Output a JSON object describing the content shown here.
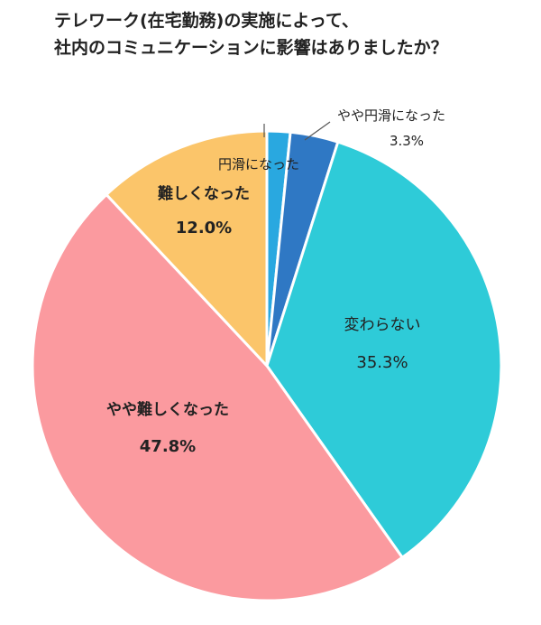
{
  "chart_data": {
    "type": "pie",
    "title_lines": [
      "テレワーク(在宅勤務)の実施によって、",
      "社内のコミュニケーションに影響はありましたか？"
    ],
    "start": "12 o'clock, clockwise",
    "slices": [
      {
        "label": "円滑になった",
        "value": 1.6,
        "value_label": "",
        "color": "#29a8e0"
      },
      {
        "label": "やや円滑になった",
        "value": 3.3,
        "value_label": "3.3%",
        "color": "#2f78c4"
      },
      {
        "label": "変わらない",
        "value": 35.3,
        "value_label": "35.3%",
        "color": "#2ecbd8"
      },
      {
        "label": "やや難しくなった",
        "value": 47.8,
        "value_label": "47.8%",
        "color": "#fb9a9f"
      },
      {
        "label": "難しくなった",
        "value": 12.0,
        "value_label": "12.0%",
        "color": "#fbc56a"
      }
    ]
  }
}
